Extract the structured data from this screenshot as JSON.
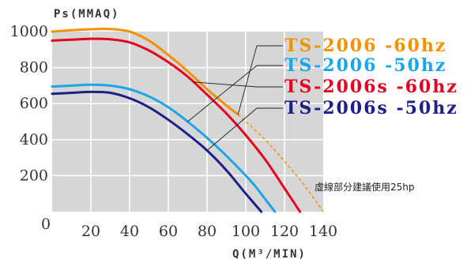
{
  "chart_data": {
    "type": "line",
    "ylabel": "Ps(MMAQ)",
    "xlabel": "Q(M³/MIN)",
    "xlim": [
      0,
      140
    ],
    "ylim": [
      0,
      1000
    ],
    "xticks": [
      "0",
      "20",
      "40",
      "60",
      "80",
      "100",
      "120",
      "140"
    ],
    "yticks": [
      "200",
      "400",
      "600",
      "800",
      "1000"
    ],
    "grid": true,
    "legend_position": "top-right",
    "note": "虛線部分建議使用25hp",
    "series": [
      {
        "name": "TS-2006  -60hz",
        "color": "#f39200",
        "x": [
          0,
          10,
          20,
          30,
          40,
          50,
          60,
          70,
          80,
          90,
          96
        ],
        "y": [
          1000,
          1008,
          1013,
          1014,
          1000,
          950,
          870,
          780,
          680,
          590,
          540
        ],
        "dashed_x": [
          96,
          100,
          110,
          120,
          130,
          140
        ],
        "dashed_y": [
          540,
          500,
          400,
          280,
          150,
          0
        ]
      },
      {
        "name": "TS-2006  -50hz",
        "color": "#1aa6e8",
        "x": [
          0,
          10,
          20,
          30,
          40,
          50,
          60,
          70,
          80,
          90,
          100,
          105,
          110,
          115
        ],
        "y": [
          695,
          700,
          705,
          700,
          680,
          640,
          580,
          500,
          410,
          310,
          200,
          140,
          70,
          0
        ]
      },
      {
        "name": "TS-2006s -60hz",
        "color": "#e6001f",
        "x": [
          0,
          10,
          20,
          30,
          40,
          50,
          60,
          70,
          80,
          90,
          100,
          110,
          120,
          128
        ],
        "y": [
          950,
          955,
          960,
          957,
          940,
          895,
          830,
          750,
          650,
          545,
          425,
          290,
          130,
          0
        ]
      },
      {
        "name": "TS-2006s -50hz",
        "color": "#1d2088",
        "x": [
          0,
          10,
          20,
          30,
          40,
          50,
          60,
          70,
          80,
          90,
          100,
          108
        ],
        "y": [
          655,
          660,
          665,
          660,
          630,
          580,
          510,
          430,
          340,
          230,
          100,
          0
        ]
      }
    ]
  }
}
